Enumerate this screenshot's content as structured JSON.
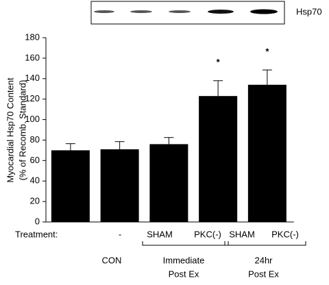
{
  "chart_data": {
    "type": "bar",
    "blot_label": "Hsp70",
    "y_label": [
      "Myocardial Hsp70 Content",
      "(% of Recomb. Standard)"
    ],
    "row_label": "Treatment:",
    "categories": [
      "-",
      "SHAM",
      "PKC(-)",
      "SHAM",
      "PKC(-)"
    ],
    "values": [
      70,
      71,
      76,
      123,
      134
    ],
    "errors": [
      6.5,
      7.5,
      6.5,
      15,
      14.5
    ],
    "color": "#000000",
    "annotations": [
      {
        "category": 3,
        "text": "*"
      },
      {
        "category": 4,
        "text": "*"
      }
    ],
    "groups": [
      {
        "lines": [
          "CON"
        ],
        "start": 0,
        "end": 0
      },
      {
        "lines": [
          "Immediate",
          "Post Ex"
        ],
        "start": 1,
        "end": 2
      },
      {
        "lines": [
          "24hr",
          "Post Ex"
        ],
        "start": 3,
        "end": 4
      }
    ],
    "ylim": [
      0,
      180
    ],
    "yticks": [
      0,
      20,
      40,
      60,
      80,
      100,
      120,
      140,
      160,
      180
    ],
    "grid": false
  }
}
